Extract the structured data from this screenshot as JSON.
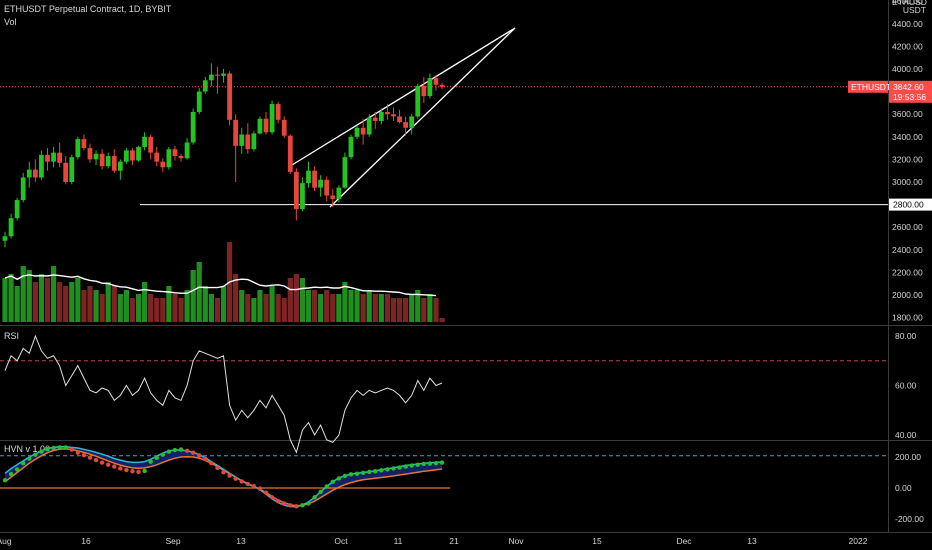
{
  "header": {
    "symbol_line": "ETHUSDT Perpetual Contract, 1D, BYBIT",
    "vol_label": "Vol"
  },
  "price_axis": {
    "top_label": "ETHUSD",
    "currency": "USDT",
    "ticks": [
      "4600.00",
      "4400.00",
      "4200.00",
      "4000.00",
      "3800.00",
      "3600.00",
      "3400.00",
      "3200.00",
      "3000.00",
      "2800.00",
      "2600.00",
      "2400.00",
      "2200.00",
      "2000.00",
      "1800.00"
    ],
    "last_symbol": "ETHUSDT",
    "last_price": "3842.60",
    "countdown": "19:53:56",
    "line_label": "2800.00"
  },
  "rsi": {
    "label": "RSI",
    "ticks": [
      "80.00",
      "60.00",
      "40.00"
    ]
  },
  "hvn": {
    "label": "HVN v 1.00",
    "ticks": [
      "200.00",
      "0.00",
      "-200.00"
    ]
  },
  "time_axis": {
    "labels": [
      "Aug",
      "16",
      "Sep",
      "13",
      "Oct",
      "11",
      "21",
      "Nov",
      "15",
      "Dec",
      "13",
      "2022"
    ]
  },
  "colors": {
    "background": "#000000",
    "up": "#22c322",
    "down": "#e8463a",
    "vol_up": "#1f8f1f",
    "vol_down": "#7f2424",
    "rsi_upper_band": "#c2453e",
    "rsi_lower_band": "#3aa0c9",
    "hvn_fill": "#14206a",
    "hvn_fast": "#33b7d9",
    "hvn_slow": "#e6762c",
    "price_tag": "#ff4a4a"
  },
  "chart_data": [
    {
      "type": "candlestick",
      "title": "ETHUSDT Perpetual Contract, 1D, BYBIT",
      "interval": "1D",
      "ylim": [
        1700,
        4700
      ],
      "series_open_high_low_close": [
        [
          2480,
          2560,
          2420,
          2520
        ],
        [
          2520,
          2720,
          2500,
          2680
        ],
        [
          2680,
          2860,
          2660,
          2840
        ],
        [
          2840,
          3080,
          2820,
          3040
        ],
        [
          3040,
          3180,
          2950,
          3110
        ],
        [
          3110,
          3200,
          3000,
          3040
        ],
        [
          3040,
          3280,
          3020,
          3240
        ],
        [
          3240,
          3300,
          3100,
          3180
        ],
        [
          3180,
          3310,
          3130,
          3260
        ],
        [
          3260,
          3350,
          3130,
          3170
        ],
        [
          3170,
          3230,
          2980,
          3000
        ],
        [
          3000,
          3240,
          2980,
          3220
        ],
        [
          3220,
          3400,
          3200,
          3380
        ],
        [
          3380,
          3420,
          3280,
          3300
        ],
        [
          3300,
          3340,
          3170,
          3200
        ],
        [
          3200,
          3280,
          3150,
          3250
        ],
        [
          3250,
          3290,
          3110,
          3140
        ],
        [
          3140,
          3260,
          3120,
          3230
        ],
        [
          3230,
          3290,
          3080,
          3100
        ],
        [
          3100,
          3200,
          3020,
          3180
        ],
        [
          3180,
          3300,
          3160,
          3280
        ],
        [
          3280,
          3300,
          3150,
          3190
        ],
        [
          3190,
          3320,
          3180,
          3310
        ],
        [
          3310,
          3440,
          3280,
          3400
        ],
        [
          3400,
          3420,
          3200,
          3260
        ],
        [
          3260,
          3310,
          3140,
          3180
        ],
        [
          3180,
          3210,
          3090,
          3130
        ],
        [
          3130,
          3310,
          3110,
          3290
        ],
        [
          3290,
          3320,
          3190,
          3230
        ],
        [
          3230,
          3250,
          3180,
          3210
        ],
        [
          3210,
          3390,
          3200,
          3350
        ],
        [
          3350,
          3650,
          3330,
          3620
        ],
        [
          3620,
          3830,
          3600,
          3800
        ],
        [
          3800,
          3930,
          3780,
          3900
        ],
        [
          3900,
          4050,
          3850,
          3950
        ],
        [
          3950,
          4020,
          3780,
          3940
        ],
        [
          3940,
          4000,
          3880,
          3960
        ],
        [
          3960,
          3980,
          3500,
          3550
        ],
        [
          3550,
          3600,
          3000,
          3320
        ],
        [
          3320,
          3480,
          3250,
          3420
        ],
        [
          3420,
          3520,
          3250,
          3290
        ],
        [
          3290,
          3450,
          3270,
          3430
        ],
        [
          3430,
          3580,
          3420,
          3560
        ],
        [
          3560,
          3620,
          3420,
          3440
        ],
        [
          3440,
          3720,
          3420,
          3690
        ],
        [
          3690,
          3710,
          3520,
          3550
        ],
        [
          3550,
          3580,
          3390,
          3410
        ],
        [
          3410,
          3420,
          3070,
          3090
        ],
        [
          3090,
          3120,
          2660,
          2760
        ],
        [
          2760,
          3040,
          2740,
          2990
        ],
        [
          2990,
          3180,
          2950,
          3100
        ],
        [
          3100,
          3140,
          2920,
          2950
        ],
        [
          2950,
          3060,
          2870,
          3020
        ],
        [
          3020,
          3050,
          2830,
          2880
        ],
        [
          2880,
          2940,
          2780,
          2850
        ],
        [
          2850,
          2970,
          2820,
          2950
        ],
        [
          2950,
          3260,
          2940,
          3220
        ],
        [
          3220,
          3420,
          3200,
          3400
        ],
        [
          3400,
          3500,
          3380,
          3480
        ],
        [
          3480,
          3560,
          3330,
          3420
        ],
        [
          3420,
          3600,
          3400,
          3570
        ],
        [
          3570,
          3620,
          3470,
          3540
        ],
        [
          3540,
          3650,
          3510,
          3620
        ],
        [
          3620,
          3690,
          3550,
          3600
        ],
        [
          3600,
          3660,
          3540,
          3580
        ],
        [
          3580,
          3640,
          3520,
          3530
        ],
        [
          3530,
          3580,
          3410,
          3480
        ],
        [
          3480,
          3600,
          3420,
          3580
        ],
        [
          3580,
          3870,
          3560,
          3850
        ],
        [
          3850,
          3930,
          3700,
          3760
        ],
        [
          3760,
          3960,
          3740,
          3920
        ],
        [
          3920,
          3950,
          3810,
          3860
        ],
        [
          3860,
          3880,
          3820,
          3842.6
        ]
      ],
      "volume_relative": [
        0.55,
        0.6,
        0.45,
        0.7,
        0.65,
        0.5,
        0.6,
        0.55,
        0.7,
        0.5,
        0.45,
        0.5,
        0.55,
        0.4,
        0.45,
        0.4,
        0.35,
        0.5,
        0.45,
        0.35,
        0.4,
        0.3,
        0.35,
        0.5,
        0.35,
        0.3,
        0.3,
        0.45,
        0.35,
        0.3,
        0.4,
        0.65,
        0.75,
        0.45,
        0.35,
        0.3,
        0.45,
        1.0,
        0.6,
        0.4,
        0.35,
        0.3,
        0.4,
        0.35,
        0.45,
        0.35,
        0.3,
        0.55,
        0.6,
        0.55,
        0.4,
        0.4,
        0.35,
        0.4,
        0.35,
        0.35,
        0.5,
        0.4,
        0.4,
        0.35,
        0.4,
        0.35,
        0.35,
        0.35,
        0.3,
        0.3,
        0.3,
        0.35,
        0.4,
        0.3,
        0.35,
        0.3,
        0.05
      ],
      "horizontal_line": 2800,
      "last_price": 3842.6
    },
    {
      "type": "line",
      "title": "RSI",
      "ylim": [
        20,
        90
      ],
      "bands": [
        70,
        30
      ],
      "values": [
        66,
        72,
        70,
        75,
        73,
        80,
        74,
        71,
        72,
        68,
        60,
        64,
        68,
        63,
        58,
        57,
        59,
        58,
        54,
        56,
        60,
        56,
        58,
        63,
        57,
        54,
        52,
        58,
        55,
        54,
        60,
        70,
        74,
        73,
        72,
        71,
        72,
        52,
        46,
        50,
        47,
        50,
        54,
        51,
        56,
        52,
        48,
        38,
        33,
        42,
        45,
        40,
        44,
        38,
        37,
        40,
        50,
        55,
        58,
        56,
        58,
        57,
        58,
        59,
        58,
        56,
        53,
        56,
        62,
        58,
        63,
        60,
        61
      ]
    },
    {
      "type": "line",
      "title": "HVN v 1.00",
      "ylim": [
        -260,
        260
      ],
      "series": [
        {
          "values": [
            95,
            125,
            150,
            175,
            200,
            220,
            240,
            255,
            262,
            266,
            266,
            262,
            258,
            250,
            240,
            230,
            218,
            205,
            190,
            180,
            170,
            165,
            165,
            170,
            185,
            205,
            225,
            240,
            245,
            245,
            240,
            230,
            215,
            195,
            170,
            145,
            120,
            95,
            70,
            45,
            25,
            10,
            -10,
            -40,
            -70,
            -95,
            -110,
            -120,
            -120,
            -110,
            -90,
            -60,
            -25,
            10,
            40,
            65,
            80,
            90,
            95,
            100,
            105,
            110,
            118,
            125,
            130,
            138,
            145,
            150,
            155,
            160,
            162,
            165,
            168
          ]
        },
        {
          "values": [
            40,
            70,
            100,
            130,
            160,
            185,
            208,
            228,
            242,
            250,
            252,
            248,
            240,
            230,
            218,
            205,
            190,
            175,
            160,
            148,
            138,
            130,
            128,
            130,
            138,
            150,
            165,
            180,
            192,
            200,
            202,
            200,
            192,
            178,
            160,
            138,
            115,
            92,
            70,
            48,
            28,
            10,
            -8,
            -30,
            -55,
            -78,
            -95,
            -108,
            -115,
            -112,
            -102,
            -85,
            -62,
            -38,
            -15,
            5,
            22,
            35,
            45,
            53,
            58,
            63,
            68,
            73,
            78,
            84,
            90,
            96,
            102,
            108,
            112,
            118,
            122
          ]
        }
      ],
      "dots_values": [
        50,
        90,
        120,
        160,
        190,
        215,
        235,
        250,
        258,
        262,
        262,
        248,
        228,
        212,
        196,
        180,
        164,
        150,
        138,
        126,
        116,
        108,
        104,
        110,
        170,
        195,
        215,
        235,
        245,
        248,
        240,
        228,
        210,
        188,
        160,
        130,
        102,
        80,
        60,
        42,
        26,
        12,
        -4,
        -30,
        -60,
        -85,
        -100,
        -112,
        -118,
        -112,
        -100,
        -60,
        -25,
        10,
        40,
        62,
        78,
        88,
        92,
        98,
        104,
        108,
        114,
        120,
        126,
        132,
        138,
        145,
        150,
        155,
        158,
        160,
        164
      ]
    }
  ]
}
